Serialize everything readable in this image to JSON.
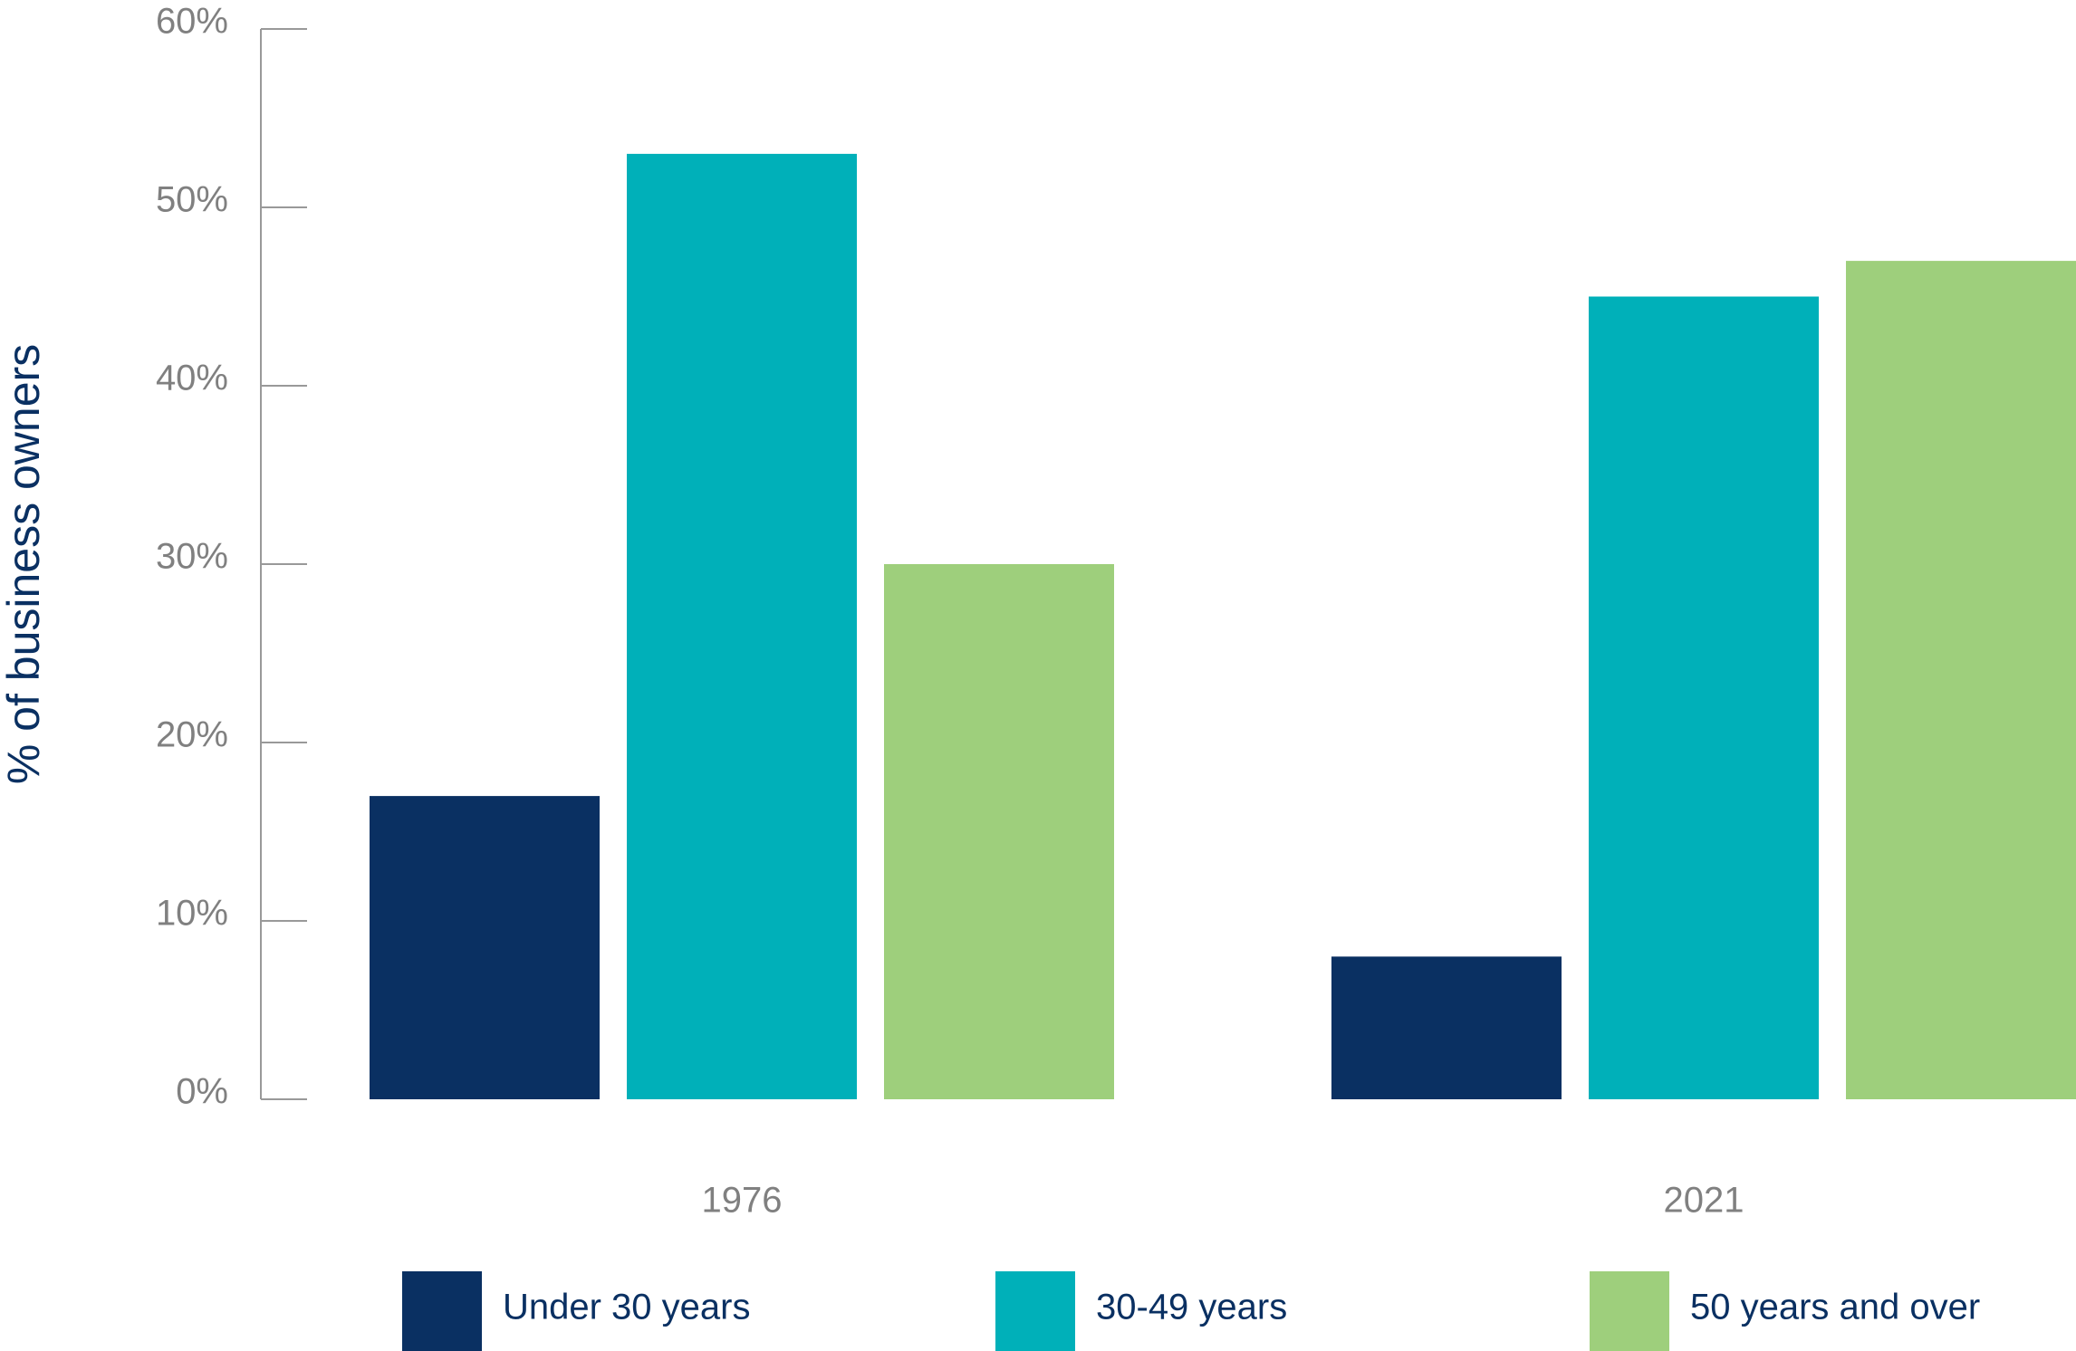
{
  "chart_data": {
    "type": "bar",
    "y_label": "% of business owners",
    "categories": [
      "1976",
      "2021"
    ],
    "series": [
      {
        "name": "Under 30 years",
        "color": "#0a3062",
        "values": [
          17,
          8
        ]
      },
      {
        "name": "30-49 years",
        "color": "#00b0b9",
        "values": [
          53,
          45
        ]
      },
      {
        "name": "50 years and over",
        "color": "#9ecf7c",
        "values": [
          30,
          47
        ]
      }
    ],
    "ylim": [
      0,
      60
    ],
    "yticks": [
      {
        "value": 0,
        "label": "0%"
      },
      {
        "value": 10,
        "label": "10%"
      },
      {
        "value": 20,
        "label": "20%"
      },
      {
        "value": 30,
        "label": "30%"
      },
      {
        "value": 40,
        "label": "40%"
      },
      {
        "value": 50,
        "label": "50%"
      },
      {
        "value": 60,
        "label": "60%"
      }
    ],
    "legend": "bottom"
  }
}
